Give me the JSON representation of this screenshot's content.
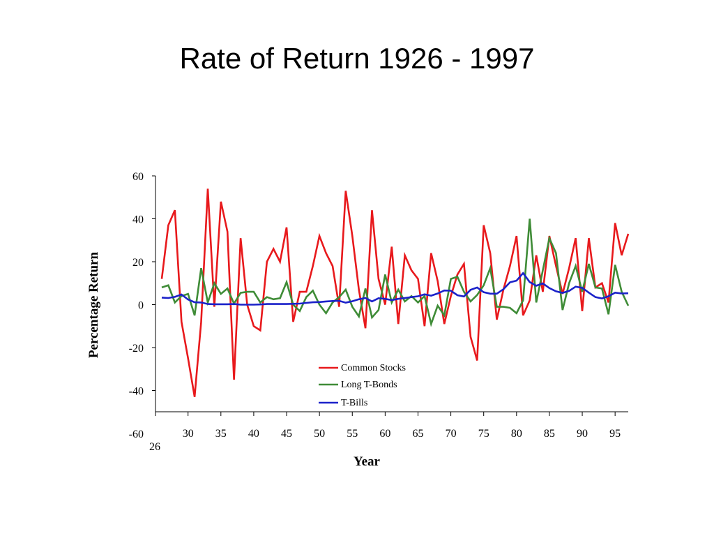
{
  "title": "Rate of Return 1926 - 1997",
  "chart_data": {
    "type": "line",
    "title": "Rate of Return 1926 - 1997",
    "xlabel": "Year",
    "ylabel": "Percentage Return",
    "ylim": [
      -60,
      60
    ],
    "xlim": [
      1926,
      1997
    ],
    "yticks": [
      -60,
      -40,
      -20,
      0,
      20,
      40,
      60
    ],
    "xticks": [
      {
        "year": 1926,
        "label": "26"
      },
      {
        "year": 1930,
        "label": "30"
      },
      {
        "year": 1935,
        "label": "35"
      },
      {
        "year": 1940,
        "label": "40"
      },
      {
        "year": 1945,
        "label": "45"
      },
      {
        "year": 1950,
        "label": "50"
      },
      {
        "year": 1955,
        "label": "55"
      },
      {
        "year": 1960,
        "label": "60"
      },
      {
        "year": 1965,
        "label": "65"
      },
      {
        "year": 1970,
        "label": "70"
      },
      {
        "year": 1975,
        "label": "75"
      },
      {
        "year": 1980,
        "label": "80"
      },
      {
        "year": 1985,
        "label": "85"
      },
      {
        "year": 1990,
        "label": "90"
      },
      {
        "year": 1995,
        "label": "95"
      }
    ],
    "grid": false,
    "legend_position": "bottom-center",
    "x": [
      1926,
      1927,
      1928,
      1929,
      1930,
      1931,
      1932,
      1933,
      1934,
      1935,
      1936,
      1937,
      1938,
      1939,
      1940,
      1941,
      1942,
      1943,
      1944,
      1945,
      1946,
      1947,
      1948,
      1949,
      1950,
      1951,
      1952,
      1953,
      1954,
      1955,
      1956,
      1957,
      1958,
      1959,
      1960,
      1961,
      1962,
      1963,
      1964,
      1965,
      1966,
      1967,
      1968,
      1969,
      1970,
      1971,
      1972,
      1973,
      1974,
      1975,
      1976,
      1977,
      1978,
      1979,
      1980,
      1981,
      1982,
      1983,
      1984,
      1985,
      1986,
      1987,
      1988,
      1989,
      1990,
      1991,
      1992,
      1993,
      1994,
      1995,
      1996,
      1997
    ],
    "series": [
      {
        "name": "Common Stocks",
        "color": "#e8191c",
        "values": [
          12,
          37,
          44,
          -8,
          -25,
          -43,
          -8,
          54,
          -1,
          48,
          34,
          -35,
          31,
          0,
          -10,
          -12,
          20,
          26,
          20,
          36,
          -8,
          6,
          6,
          18,
          32,
          24,
          18,
          -1,
          53,
          32,
          7,
          -11,
          44,
          12,
          0,
          27,
          -9,
          23,
          16,
          12,
          -10,
          24,
          11,
          -9,
          4,
          14,
          19,
          -15,
          -26,
          37,
          24,
          -7,
          7,
          18,
          32,
          -5,
          2,
          23,
          6,
          32,
          18,
          5,
          17,
          31,
          -3,
          31,
          8,
          10,
          1,
          38,
          23,
          33
        ]
      },
      {
        "name": "Long T-Bonds",
        "color": "#3f8c37",
        "values": [
          8,
          9,
          1,
          4,
          5,
          -5,
          17,
          1,
          10,
          5,
          7.5,
          0.5,
          5.5,
          6,
          6,
          1,
          3.5,
          2.5,
          3,
          10.5,
          0,
          -3,
          3.5,
          6.5,
          0,
          -4,
          1,
          3.5,
          7,
          -1,
          -5.5,
          7.5,
          -6,
          -2.5,
          14,
          1,
          7,
          1.5,
          4,
          1,
          4,
          -9,
          -0.5,
          -5,
          12,
          13,
          6,
          1.5,
          4.5,
          9,
          17,
          -1,
          -1,
          -1.5,
          -4,
          2,
          40,
          1,
          16,
          31,
          24,
          -2.5,
          10,
          18,
          6,
          19,
          8,
          7.5,
          -4.5,
          18.5,
          6,
          -0.5
        ]
      },
      {
        "name": "T-Bills",
        "color": "#1b22c9",
        "values": [
          3.3,
          3.1,
          3.6,
          4.7,
          2.4,
          1.1,
          1,
          0.3,
          0.2,
          0.2,
          0.2,
          0.3,
          0,
          0,
          0,
          0.1,
          0.3,
          0.3,
          0.3,
          0.3,
          0.4,
          0.5,
          0.8,
          1.1,
          1.2,
          1.5,
          1.7,
          1.8,
          0.9,
          1.6,
          2.5,
          3.1,
          1.5,
          3,
          2.7,
          2.1,
          2.7,
          3.1,
          3.5,
          3.9,
          4.8,
          4.2,
          5.2,
          6.6,
          6.5,
          4.4,
          3.8,
          6.9,
          8,
          5.8,
          5.1,
          5.1,
          7.2,
          10.4,
          11.2,
          14.7,
          10.5,
          8.8,
          9.9,
          7.7,
          6.2,
          5.5,
          6.4,
          8.4,
          7.8,
          5.6,
          3.5,
          2.9,
          3.9,
          5.6,
          5.2,
          5.3
        ]
      }
    ]
  }
}
